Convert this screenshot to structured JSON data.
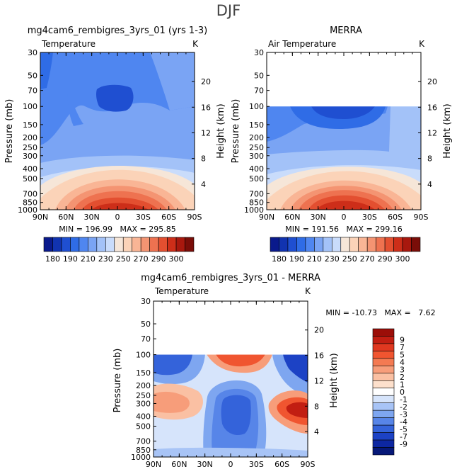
{
  "chart_data": {
    "type": "heatmap",
    "title": "DJF",
    "x_tick_labels": [
      "90N",
      "60N",
      "30N",
      "0",
      "30S",
      "60S",
      "90S"
    ],
    "pressure_tick_labels": [
      "30",
      "50",
      "70",
      "100",
      "150",
      "200",
      "250",
      "300",
      "400",
      "500",
      "700",
      "850",
      "1000"
    ],
    "pressure_levels_mb": [
      30,
      50,
      70,
      100,
      150,
      200,
      250,
      300,
      400,
      500,
      700,
      850,
      1000
    ],
    "height_tick_labels": [
      "4",
      "8",
      "12",
      "16",
      "20"
    ],
    "height_levels_km": [
      4,
      8,
      12,
      16,
      20
    ],
    "xlabel": "",
    "ylabel": "Pressure (mb)",
    "ylabel_right": "Height (km)",
    "panels": [
      {
        "title": "mg4cam6_rembigres_3yrs_01 (yrs 1-3)",
        "variable": "Temperature",
        "units": "K",
        "stats": "MIN = 196.99   MAX = 295.85",
        "min": 196.99,
        "max": 295.85,
        "ptop_mb": 30,
        "ylim_mb": [
          30,
          1000
        ]
      },
      {
        "title": "MERRA",
        "variable": "Air Temperature",
        "units": "K",
        "stats": "MIN = 191.56   MAX = 299.16",
        "min": 191.56,
        "max": 299.16,
        "ptop_mb": 100,
        "ylim_mb": [
          30,
          1000
        ]
      },
      {
        "title": "mg4cam6_rembigres_3yrs_01 - MERRA",
        "variable": "Temperature",
        "units": "K",
        "stats": "MIN = -10.73   MAX =   7.62",
        "min": -10.73,
        "max": 7.62,
        "ptop_mb": 100,
        "ylim_mb": [
          30,
          1000
        ]
      }
    ],
    "temperature_colorbar": {
      "labels": [
        "180",
        "190",
        "210",
        "230",
        "250",
        "270",
        "290",
        "300"
      ],
      "colors": [
        "#0a1a8c",
        "#1133b0",
        "#1f4fd1",
        "#2f6ce6",
        "#4f86f0",
        "#7aa4f4",
        "#a3c2f8",
        "#c9dcfb",
        "#f6e6d8",
        "#fbd3b8",
        "#f9b595",
        "#f49472",
        "#ee7250",
        "#e34f30",
        "#cd2e19",
        "#a8180e",
        "#7a0d08"
      ]
    },
    "difference_colorbar": {
      "labels": [
        "9",
        "7",
        "5",
        "4",
        "3",
        "2",
        "1",
        "0",
        "-1",
        "-2",
        "-3",
        "-4",
        "-5",
        "-7",
        "-9"
      ],
      "colors": [
        "#9c0e08",
        "#c21e12",
        "#e03820",
        "#f05530",
        "#f47a52",
        "#f79d7a",
        "#fac0a3",
        "#fde0cc",
        "#ffffff",
        "#d6e4fb",
        "#a8c4f6",
        "#7ea6f0",
        "#5785e8",
        "#3463da",
        "#1c42c5",
        "#0d27a2",
        "#061878"
      ]
    }
  }
}
